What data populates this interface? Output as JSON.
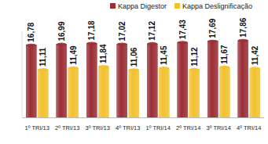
{
  "chart_data": {
    "type": "bar",
    "categories": [
      "1º TRI/13",
      "2º TRI/13",
      "3º TRI/13",
      "4º TRI/13",
      "1º TRI/14",
      "2º TRI/14",
      "3º TRI/14",
      "4º TRI/14"
    ],
    "series": [
      {
        "name": "Kappa Digestor",
        "color": "#9b2d35",
        "values": [
          16.78,
          16.99,
          17.18,
          17.02,
          17.12,
          17.43,
          17.69,
          17.86
        ],
        "value_labels": [
          "16,78",
          "16,99",
          "17,18",
          "17,02",
          "17,12",
          "17,43",
          "17,69",
          "17,86"
        ]
      },
      {
        "name": "Kappa Deslignificação",
        "color": "#f2c12e",
        "values": [
          11.11,
          11.49,
          11.84,
          11.06,
          11.45,
          11.12,
          11.67,
          11.42
        ],
        "value_labels": [
          "11,11",
          "11,49",
          "11,84",
          "11,06",
          "11,45",
          "11,12",
          "11,67",
          "11,42"
        ]
      }
    ],
    "ylim": [
      0,
      20
    ],
    "data_labels": true,
    "tick_labels": "x",
    "legend": "top"
  }
}
